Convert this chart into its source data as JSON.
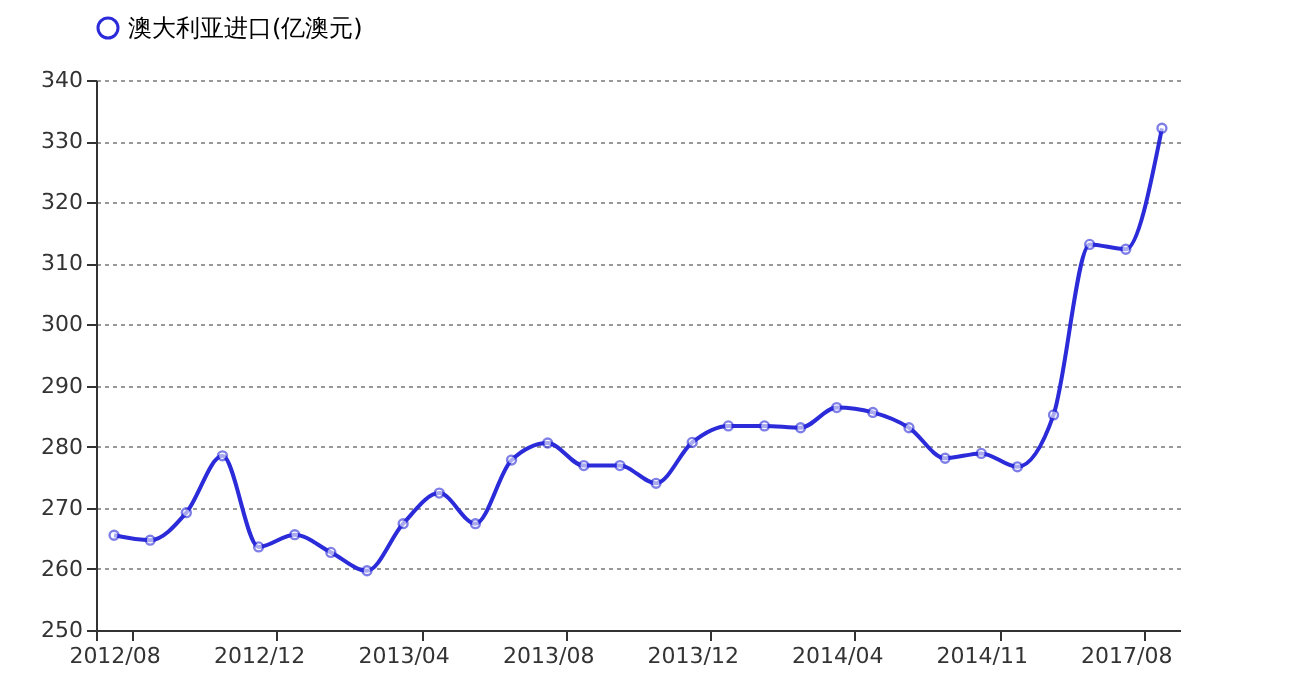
{
  "chart_data": {
    "type": "line",
    "categories": [
      "2012/08",
      null,
      null,
      null,
      "2012/12",
      null,
      null,
      null,
      "2013/04",
      null,
      null,
      null,
      "2013/08",
      null,
      null,
      null,
      "2013/12",
      null,
      null,
      null,
      "2014/04",
      null,
      null,
      null,
      "2014/11",
      null,
      null,
      null,
      "2017/08",
      null
    ],
    "series": [
      {
        "name": "澳大利亚进口(亿澳元)",
        "color": "#2b2bd9",
        "values": [
          265.5,
          264.7,
          269.2,
          278.5,
          263.6,
          265.6,
          262.7,
          259.7,
          267.4,
          272.4,
          267.4,
          277.8,
          280.6,
          276.9,
          276.9,
          274,
          280.7,
          283.4,
          283.4,
          283.1,
          286.4,
          285.6,
          283.1,
          278.1,
          278.9,
          276.7,
          285.2,
          313.1,
          312.3,
          332.1
        ]
      }
    ],
    "ylim": [
      250,
      340
    ],
    "yticks": [
      250,
      260,
      270,
      280,
      290,
      300,
      310,
      320,
      330,
      340
    ],
    "grid": "y",
    "legend": "top",
    "marker": "circle",
    "line_style": "solid"
  }
}
